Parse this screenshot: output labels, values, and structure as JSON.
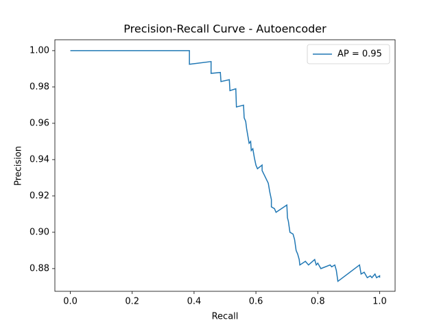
{
  "chart_data": {
    "type": "line",
    "title": "Precision-Recall Curve - Autoencoder",
    "x_label": "Recall",
    "y_label": "Precision",
    "x": [
      0,
      0.385,
      0.385,
      0.455,
      0.455,
      0.485,
      0.487,
      0.514,
      0.516,
      0.535,
      0.537,
      0.56,
      0.562,
      0.567,
      0.57,
      0.575,
      0.578,
      0.583,
      0.585,
      0.59,
      0.595,
      0.6,
      0.605,
      0.62,
      0.62,
      0.64,
      0.645,
      0.65,
      0.65,
      0.66,
      0.665,
      0.7,
      0.702,
      0.705,
      0.71,
      0.72,
      0.725,
      0.73,
      0.735,
      0.74,
      0.742,
      0.76,
      0.77,
      0.79,
      0.795,
      0.8,
      0.81,
      0.84,
      0.845,
      0.855,
      0.86,
      0.865,
      0.935,
      0.94,
      0.95,
      0.96,
      0.97,
      0.975,
      0.985,
      0.99,
      1.0,
      1.0
    ],
    "series": [
      {
        "name": "AP = 0.95",
        "color": "#1f77b4",
        "values": [
          1.0,
          1.0,
          0.9925,
          0.994,
          0.9875,
          0.988,
          0.983,
          0.984,
          0.978,
          0.979,
          0.969,
          0.97,
          0.963,
          0.961,
          0.957,
          0.952,
          0.949,
          0.95,
          0.945,
          0.946,
          0.941,
          0.937,
          0.935,
          0.937,
          0.934,
          0.927,
          0.922,
          0.918,
          0.914,
          0.913,
          0.911,
          0.915,
          0.908,
          0.906,
          0.9,
          0.899,
          0.896,
          0.89,
          0.888,
          0.885,
          0.882,
          0.884,
          0.882,
          0.885,
          0.882,
          0.883,
          0.88,
          0.882,
          0.881,
          0.882,
          0.879,
          0.873,
          0.882,
          0.877,
          0.878,
          0.875,
          0.876,
          0.875,
          0.877,
          0.875,
          0.876,
          0.875
        ]
      }
    ],
    "xlim": [
      -0.05,
      1.05
    ],
    "ylim": [
      0.8675,
      1.006
    ],
    "xticks": [
      {
        "value": 0,
        "label": "0.0"
      },
      0.2,
      0.4,
      0.6,
      0.8,
      {
        "value": 1,
        "label": "1.0"
      }
    ],
    "yticks": [
      0.88,
      {
        "value": 0.9,
        "label": "0.90"
      },
      0.92,
      0.94,
      0.96,
      0.98,
      {
        "value": 1,
        "label": "1.00"
      }
    ],
    "legend": "upper right"
  }
}
